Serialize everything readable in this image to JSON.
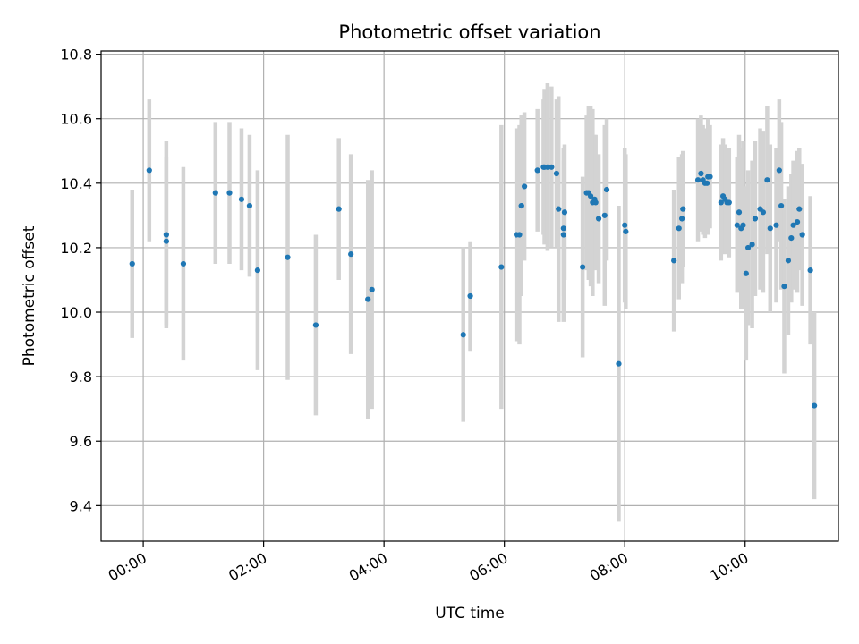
{
  "chart_data": {
    "type": "scatter",
    "title": "Photometric offset variation",
    "xlabel": "UTC time",
    "ylabel": "Photometric offset",
    "grid": true,
    "legend": "none",
    "colors": {
      "points": "#1f77b4",
      "errorbars": "#d3d3d3",
      "grid": "#b0b0b0"
    },
    "xlim": [
      "-00:42",
      "11:33"
    ],
    "ylim": [
      9.29,
      10.81
    ],
    "x_ticks": [
      "00:00",
      "02:00",
      "04:00",
      "06:00",
      "08:00",
      "10:00"
    ],
    "y_ticks": [
      9.4,
      9.6,
      9.8,
      10.0,
      10.2,
      10.4,
      10.6,
      10.8
    ],
    "y_tick_labels": [
      "9.4",
      "9.6",
      "9.8",
      "10.0",
      "10.2",
      "10.4",
      "10.6",
      "10.8"
    ],
    "series": [
      {
        "fields": [
          "time",
          "offset",
          "error"
        ],
        "points": [
          [
            "-00:11",
            10.15,
            0.23
          ],
          [
            "00:06",
            10.44,
            0.22
          ],
          [
            "00:23",
            10.24,
            0.29
          ],
          [
            "00:23",
            10.22,
            0.26
          ],
          [
            "00:40",
            10.15,
            0.3
          ],
          [
            "01:12",
            10.37,
            0.22
          ],
          [
            "01:26",
            10.37,
            0.22
          ],
          [
            "01:38",
            10.35,
            0.22
          ],
          [
            "01:46",
            10.33,
            0.22
          ],
          [
            "01:54",
            10.13,
            0.31
          ],
          [
            "02:24",
            10.17,
            0.38
          ],
          [
            "02:52",
            9.96,
            0.28
          ],
          [
            "03:15",
            10.32,
            0.22
          ],
          [
            "03:27",
            10.18,
            0.31
          ],
          [
            "03:44",
            10.04,
            0.37
          ],
          [
            "03:48",
            10.07,
            0.37
          ],
          [
            "05:19",
            9.93,
            0.27
          ],
          [
            "05:26",
            10.05,
            0.17
          ],
          [
            "05:57",
            10.14,
            0.44
          ],
          [
            "06:12",
            10.24,
            0.33
          ],
          [
            "06:15",
            10.24,
            0.34
          ],
          [
            "06:17",
            10.33,
            0.28
          ],
          [
            "06:17",
            10.33,
            0.28
          ],
          [
            "06:20",
            10.39,
            0.23
          ],
          [
            "06:33",
            10.44,
            0.19
          ],
          [
            "06:39",
            10.45,
            0.21
          ],
          [
            "06:40",
            10.45,
            0.24
          ],
          [
            "06:43",
            10.45,
            0.26
          ],
          [
            "06:47",
            10.45,
            0.25
          ],
          [
            "06:52",
            10.43,
            0.23
          ],
          [
            "06:54",
            10.32,
            0.35
          ],
          [
            "06:59",
            10.26,
            0.21
          ],
          [
            "07:00",
            10.31,
            0.21
          ],
          [
            "06:59",
            10.24,
            0.27
          ],
          [
            "07:18",
            10.14,
            0.28
          ],
          [
            "07:22",
            10.37,
            0.24
          ],
          [
            "07:24",
            10.37,
            0.27
          ],
          [
            "07:26",
            10.36,
            0.28
          ],
          [
            "07:28",
            10.34,
            0.29
          ],
          [
            "07:30",
            10.35,
            0.2
          ],
          [
            "07:31",
            10.34,
            0.21
          ],
          [
            "07:34",
            10.29,
            0.2
          ],
          [
            "07:40",
            10.3,
            0.28
          ],
          [
            "07:42",
            10.38,
            0.22
          ],
          [
            "07:54",
            9.84,
            0.49
          ],
          [
            "08:00",
            10.27,
            0.24
          ],
          [
            "08:01",
            10.25,
            0.24
          ],
          [
            "08:49",
            10.16,
            0.22
          ],
          [
            "08:54",
            10.26,
            0.22
          ],
          [
            "08:57",
            10.29,
            0.2
          ],
          [
            "08:58",
            10.32,
            0.18
          ],
          [
            "09:13",
            10.41,
            0.19
          ],
          [
            "09:16",
            10.43,
            0.18
          ],
          [
            "09:18",
            10.41,
            0.17
          ],
          [
            "09:20",
            10.4,
            0.17
          ],
          [
            "09:22",
            10.4,
            0.16
          ],
          [
            "09:23",
            10.42,
            0.18
          ],
          [
            "09:25",
            10.42,
            0.16
          ],
          [
            "09:36",
            10.34,
            0.18
          ],
          [
            "09:38",
            10.36,
            0.18
          ],
          [
            "09:40",
            10.35,
            0.17
          ],
          [
            "09:42",
            10.34,
            0.16
          ],
          [
            "09:44",
            10.34,
            0.17
          ],
          [
            "09:52",
            10.27,
            0.21
          ],
          [
            "09:54",
            10.31,
            0.24
          ],
          [
            "09:56",
            10.26,
            0.25
          ],
          [
            "09:58",
            10.27,
            0.26
          ],
          [
            "10:01",
            10.12,
            0.27
          ],
          [
            "10:03",
            10.2,
            0.24
          ],
          [
            "10:07",
            10.21,
            0.26
          ],
          [
            "10:10",
            10.29,
            0.24
          ],
          [
            "10:15",
            10.32,
            0.25
          ],
          [
            "10:18",
            10.31,
            0.25
          ],
          [
            "10:22",
            10.41,
            0.23
          ],
          [
            "10:25",
            10.26,
            0.26
          ],
          [
            "10:31",
            10.27,
            0.24
          ],
          [
            "10:34",
            10.44,
            0.22
          ],
          [
            "10:36",
            10.33,
            0.26
          ],
          [
            "10:39",
            10.08,
            0.27
          ],
          [
            "10:43",
            10.16,
            0.23
          ],
          [
            "10:46",
            10.23,
            0.2
          ],
          [
            "10:48",
            10.27,
            0.2
          ],
          [
            "10:52",
            10.28,
            0.22
          ],
          [
            "10:54",
            10.32,
            0.19
          ],
          [
            "10:57",
            10.24,
            0.22
          ],
          [
            "11:05",
            10.13,
            0.23
          ],
          [
            "11:09",
            9.71,
            0.29
          ]
        ]
      }
    ]
  }
}
